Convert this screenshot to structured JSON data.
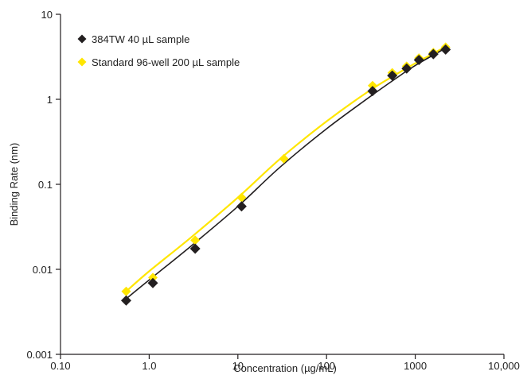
{
  "chart_data": {
    "type": "scatter",
    "title": "",
    "xlabel": "Concentration (µg/mL)",
    "ylabel": "Binding Rate (nm)",
    "xscale": "log",
    "yscale": "log",
    "xlim": [
      0.1,
      10000
    ],
    "ylim": [
      0.001,
      10
    ],
    "x_ticks": [
      {
        "value": 0.1,
        "label": "0.10"
      },
      {
        "value": 1,
        "label": "1.0"
      },
      {
        "value": 10,
        "label": "10"
      },
      {
        "value": 100,
        "label": "100"
      },
      {
        "value": 1000,
        "label": "1000"
      },
      {
        "value": 10000,
        "label": "10,000"
      }
    ],
    "y_ticks": [
      {
        "value": 0.001,
        "label": "0.001"
      },
      {
        "value": 0.01,
        "label": "0.01"
      },
      {
        "value": 0.1,
        "label": "0.1"
      },
      {
        "value": 1,
        "label": "1"
      },
      {
        "value": 10,
        "label": "10"
      }
    ],
    "grid": false,
    "legend": "top-left",
    "series": [
      {
        "name": "384TW 40 µL sample",
        "color": "#231f20",
        "marker": "diamond",
        "points": [
          {
            "x": 0.55,
            "y": 0.0043
          },
          {
            "x": 1.1,
            "y": 0.0069
          },
          {
            "x": 3.3,
            "y": 0.0175
          },
          {
            "x": 11,
            "y": 0.055
          },
          {
            "x": 330,
            "y": 1.25
          },
          {
            "x": 550,
            "y": 1.9
          },
          {
            "x": 800,
            "y": 2.3
          },
          {
            "x": 1100,
            "y": 2.9
          },
          {
            "x": 1600,
            "y": 3.4
          },
          {
            "x": 2200,
            "y": 3.85
          }
        ],
        "fit": [
          [
            0.55,
            0.0045
          ],
          [
            1,
            0.0075
          ],
          [
            3,
            0.019
          ],
          [
            10,
            0.055
          ],
          [
            30,
            0.16
          ],
          [
            100,
            0.45
          ],
          [
            300,
            1.05
          ],
          [
            600,
            1.75
          ],
          [
            1000,
            2.5
          ],
          [
            2200,
            4.0
          ]
        ]
      },
      {
        "name": "Standard 96-well 200 µL sample",
        "color": "#ffe600",
        "marker": "diamond",
        "points": [
          {
            "x": 0.55,
            "y": 0.0055
          },
          {
            "x": 1.1,
            "y": 0.008
          },
          {
            "x": 3.3,
            "y": 0.022
          },
          {
            "x": 11,
            "y": 0.07
          },
          {
            "x": 33,
            "y": 0.2
          },
          {
            "x": 330,
            "y": 1.45
          },
          {
            "x": 550,
            "y": 2.05
          },
          {
            "x": 800,
            "y": 2.45
          },
          {
            "x": 1100,
            "y": 3.05
          },
          {
            "x": 1600,
            "y": 3.55
          },
          {
            "x": 2200,
            "y": 4.1
          }
        ],
        "fit": [
          [
            0.55,
            0.0055
          ],
          [
            1,
            0.0095
          ],
          [
            3,
            0.024
          ],
          [
            10,
            0.07
          ],
          [
            30,
            0.2
          ],
          [
            100,
            0.55
          ],
          [
            300,
            1.25
          ],
          [
            600,
            1.95
          ],
          [
            1000,
            2.65
          ],
          [
            2200,
            4.15
          ]
        ]
      }
    ]
  }
}
